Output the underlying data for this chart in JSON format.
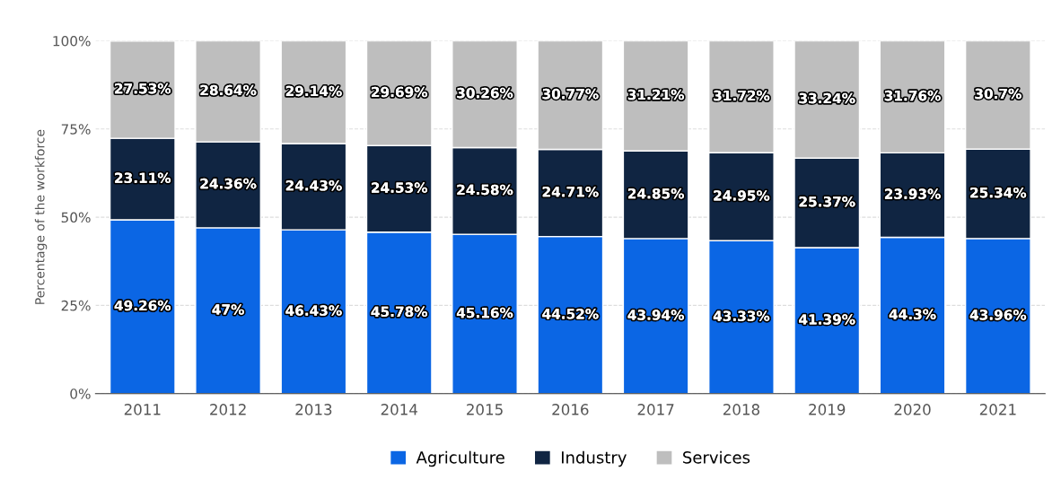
{
  "chart_data": {
    "type": "bar",
    "stacked": true,
    "ylabel": "Percentage of the workforce",
    "categories": [
      "2011",
      "2012",
      "2013",
      "2014",
      "2015",
      "2016",
      "2017",
      "2018",
      "2019",
      "2020",
      "2021"
    ],
    "series": [
      {
        "name": "Agriculture",
        "color": "#0b66e4",
        "values": [
          49.26,
          47,
          46.43,
          45.78,
          45.16,
          44.52,
          43.94,
          43.33,
          41.39,
          44.3,
          43.96
        ],
        "value_labels": [
          "49.26%",
          "47%",
          "46.43%",
          "45.78%",
          "45.16%",
          "44.52%",
          "43.94%",
          "43.33%",
          "41.39%",
          "44.3%",
          "43.96%"
        ]
      },
      {
        "name": "Industry",
        "color": "#102542",
        "values": [
          23.11,
          24.36,
          24.43,
          24.53,
          24.58,
          24.71,
          24.85,
          24.95,
          25.37,
          23.93,
          25.34
        ],
        "value_labels": [
          "23.11%",
          "24.36%",
          "24.43%",
          "24.53%",
          "24.58%",
          "24.71%",
          "24.85%",
          "24.95%",
          "25.37%",
          "23.93%",
          "25.34%"
        ]
      },
      {
        "name": "Services",
        "color": "#bebebe",
        "values": [
          27.53,
          28.64,
          29.14,
          29.69,
          30.26,
          30.77,
          31.21,
          31.72,
          33.24,
          31.76,
          30.7
        ],
        "value_labels": [
          "27.53%",
          "28.64%",
          "29.14%",
          "29.69%",
          "30.26%",
          "30.77%",
          "31.21%",
          "31.72%",
          "33.24%",
          "31.76%",
          "30.7%"
        ]
      }
    ],
    "ylim": [
      0,
      100
    ],
    "yticks": [
      {
        "value": 0,
        "label": "0%"
      },
      {
        "value": 25,
        "label": "25%"
      },
      {
        "value": 50,
        "label": "50%"
      },
      {
        "value": 75,
        "label": "75%"
      },
      {
        "value": 100,
        "label": "100%"
      }
    ],
    "grid": "y",
    "legend": "bottom"
  }
}
